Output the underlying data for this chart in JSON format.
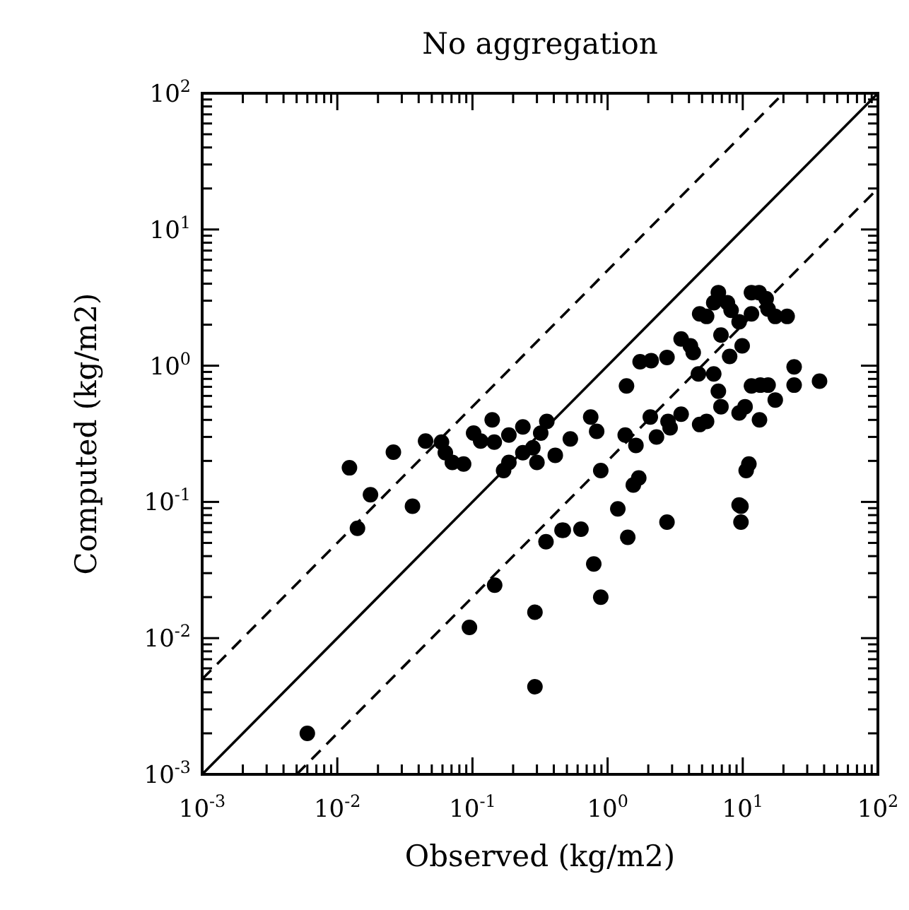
{
  "chart_data": {
    "type": "scatter",
    "title": "No aggregation",
    "xlabel": "Observed (kg/m2)",
    "ylabel": "Computed (kg/m2)",
    "log": "xy",
    "grid": false,
    "xlim": [
      0.001,
      100
    ],
    "ylim": [
      0.001,
      100
    ],
    "xticks": [
      {
        "value": 0.001,
        "label": "10$^{-3}$"
      },
      {
        "value": 0.002,
        "label": null
      },
      {
        "value": 0.003,
        "label": null
      },
      {
        "value": 0.004,
        "label": null
      },
      {
        "value": 0.005,
        "label": null
      },
      {
        "value": 0.006,
        "label": null
      },
      {
        "value": 0.007,
        "label": null
      },
      {
        "value": 0.008,
        "label": null
      },
      {
        "value": 0.009,
        "label": null
      },
      {
        "value": 0.01,
        "label": "10$^{-2}$"
      },
      {
        "value": 0.02,
        "label": null
      },
      {
        "value": 0.03,
        "label": null
      },
      {
        "value": 0.04,
        "label": null
      },
      {
        "value": 0.05,
        "label": null
      },
      {
        "value": 0.06,
        "label": null
      },
      {
        "value": 0.07,
        "label": null
      },
      {
        "value": 0.08,
        "label": null
      },
      {
        "value": 0.09,
        "label": null
      },
      {
        "value": 0.1,
        "label": "10$^{-1}$"
      },
      {
        "value": 0.2,
        "label": null
      },
      {
        "value": 0.3,
        "label": null
      },
      {
        "value": 0.4,
        "label": null
      },
      {
        "value": 0.5,
        "label": null
      },
      {
        "value": 0.6,
        "label": null
      },
      {
        "value": 0.7,
        "label": null
      },
      {
        "value": 0.8,
        "label": null
      },
      {
        "value": 0.9,
        "label": null
      },
      {
        "value": 1,
        "label": "10$^{0}$"
      },
      {
        "value": 2,
        "label": null
      },
      {
        "value": 3,
        "label": null
      },
      {
        "value": 4,
        "label": null
      },
      {
        "value": 5,
        "label": null
      },
      {
        "value": 6,
        "label": null
      },
      {
        "value": 7,
        "label": null
      },
      {
        "value": 8,
        "label": null
      },
      {
        "value": 9,
        "label": null
      },
      {
        "value": 10,
        "label": "10$^{1}$"
      },
      {
        "value": 20,
        "label": null
      },
      {
        "value": 30,
        "label": null
      },
      {
        "value": 40,
        "label": null
      },
      {
        "value": 50,
        "label": null
      },
      {
        "value": 60,
        "label": null
      },
      {
        "value": 70,
        "label": null
      },
      {
        "value": 80,
        "label": null
      },
      {
        "value": 90,
        "label": null
      },
      {
        "value": 100,
        "label": "10$^{2}$"
      }
    ],
    "yticks": [
      {
        "value": 0.001,
        "label": "10$^{-3}$"
      },
      {
        "value": 0.002,
        "label": null
      },
      {
        "value": 0.003,
        "label": null
      },
      {
        "value": 0.004,
        "label": null
      },
      {
        "value": 0.005,
        "label": null
      },
      {
        "value": 0.006,
        "label": null
      },
      {
        "value": 0.007,
        "label": null
      },
      {
        "value": 0.008,
        "label": null
      },
      {
        "value": 0.009,
        "label": null
      },
      {
        "value": 0.01,
        "label": "10$^{-2}$"
      },
      {
        "value": 0.02,
        "label": null
      },
      {
        "value": 0.03,
        "label": null
      },
      {
        "value": 0.04,
        "label": null
      },
      {
        "value": 0.05,
        "label": null
      },
      {
        "value": 0.06,
        "label": null
      },
      {
        "value": 0.07,
        "label": null
      },
      {
        "value": 0.08,
        "label": null
      },
      {
        "value": 0.09,
        "label": null
      },
      {
        "value": 0.1,
        "label": "10$^{-1}$"
      },
      {
        "value": 0.2,
        "label": null
      },
      {
        "value": 0.3,
        "label": null
      },
      {
        "value": 0.4,
        "label": null
      },
      {
        "value": 0.5,
        "label": null
      },
      {
        "value": 0.6,
        "label": null
      },
      {
        "value": 0.7,
        "label": null
      },
      {
        "value": 0.8,
        "label": null
      },
      {
        "value": 0.9,
        "label": null
      },
      {
        "value": 1,
        "label": "10$^{0}$"
      },
      {
        "value": 2,
        "label": null
      },
      {
        "value": 3,
        "label": null
      },
      {
        "value": 4,
        "label": null
      },
      {
        "value": 5,
        "label": null
      },
      {
        "value": 6,
        "label": null
      },
      {
        "value": 7,
        "label": null
      },
      {
        "value": 8,
        "label": null
      },
      {
        "value": 9,
        "label": null
      },
      {
        "value": 10,
        "label": "10$^{1}$"
      },
      {
        "value": 20,
        "label": null
      },
      {
        "value": 30,
        "label": null
      },
      {
        "value": 40,
        "label": null
      },
      {
        "value": 50,
        "label": null
      },
      {
        "value": 60,
        "label": null
      },
      {
        "value": 70,
        "label": null
      },
      {
        "value": 80,
        "label": null
      },
      {
        "value": 90,
        "label": null
      },
      {
        "value": 100,
        "label": "10$^{2}$"
      }
    ],
    "series": [
      {
        "type": "line",
        "color": "#000000",
        "line_style": "solid",
        "marker": "none",
        "x": [
          0.001,
          100
        ],
        "values": [
          0.001,
          100
        ]
      },
      {
        "type": "line",
        "color": "#000000",
        "line_style": "dashed",
        "marker": "none",
        "x": [
          0.001,
          20
        ],
        "values": [
          0.005,
          100
        ]
      },
      {
        "type": "line",
        "color": "#000000",
        "line_style": "dashed",
        "marker": "none",
        "x": [
          0.005,
          100
        ],
        "values": [
          0.001,
          20
        ]
      },
      {
        "color": "#000000",
        "marker": "circle",
        "x": [
          0.006,
          0.095,
          0.146,
          0.29,
          0.29,
          0.89,
          0.79,
          0.0123,
          0.0176,
          0.0141,
          0.026,
          0.036,
          0.045,
          0.059,
          0.063,
          0.071,
          0.086,
          0.102,
          0.115,
          0.14,
          0.145,
          0.186,
          0.236,
          0.355,
          0.32,
          0.17,
          0.186,
          0.236,
          0.28,
          0.3,
          0.41,
          0.35,
          0.46,
          0.47,
          0.635,
          1.19,
          1.41,
          2.75,
          9.7,
          9.7,
          1.55,
          1.7,
          0.53,
          0.75,
          0.83,
          0.89,
          1.38,
          1.35,
          1.62,
          1.74,
          2.1,
          2.07,
          2.3,
          2.75,
          2.8,
          2.9,
          3.5,
          3.5,
          4.1,
          4.3,
          4.8,
          5.4,
          4.7,
          6.1,
          4.8,
          5.4,
          6.6,
          6.1,
          6.9,
          6.6,
          6.9,
          7.7,
          8.2,
          8.0,
          9.4,
          9.9,
          9.4,
          10.4,
          13.3,
          11.1,
          10.6,
          9.4,
          11.6,
          13.2,
          14.9,
          11.6,
          15.4,
          17.4,
          21.3,
          11.6,
          13.5,
          15.4,
          17.4,
          24,
          24,
          37
        ],
        "values": [
          0.002,
          0.012,
          0.0245,
          0.0155,
          0.0044,
          0.02,
          0.035,
          0.178,
          0.113,
          0.064,
          0.232,
          0.093,
          0.28,
          0.275,
          0.23,
          0.195,
          0.19,
          0.32,
          0.28,
          0.4,
          0.275,
          0.31,
          0.355,
          0.39,
          0.32,
          0.17,
          0.195,
          0.23,
          0.25,
          0.195,
          0.22,
          0.051,
          0.062,
          0.062,
          0.063,
          0.089,
          0.055,
          0.071,
          0.093,
          0.071,
          0.133,
          0.15,
          0.29,
          0.42,
          0.33,
          0.17,
          0.71,
          0.31,
          0.26,
          1.07,
          1.09,
          0.42,
          0.3,
          1.15,
          0.39,
          0.35,
          0.44,
          1.57,
          1.4,
          1.25,
          0.37,
          0.39,
          0.87,
          0.87,
          2.4,
          2.3,
          3.44,
          2.9,
          1.68,
          0.65,
          0.5,
          2.9,
          2.55,
          1.17,
          2.1,
          1.4,
          0.45,
          0.5,
          0.4,
          0.19,
          0.17,
          0.095,
          3.44,
          3.44,
          3.1,
          2.4,
          2.6,
          2.3,
          2.3,
          0.71,
          0.72,
          0.72,
          0.56,
          0.98,
          0.72,
          0.77
        ]
      }
    ]
  }
}
